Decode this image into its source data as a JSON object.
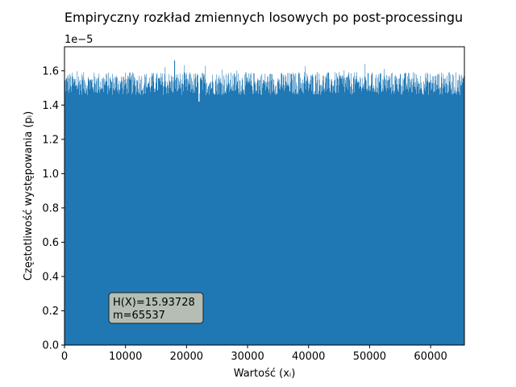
{
  "chart_data": {
    "type": "bar",
    "title": "Empiryczny rozkład zmiennych losowych po post-processingu",
    "xlabel": "Wartość (xᵢ)",
    "ylabel": "Częstotliwość występowania (pᵢ)",
    "y_offset_text": "1e−5",
    "xlim": [
      0,
      65537
    ],
    "ylim": [
      0,
      1.74
    ],
    "y_scale": "×1e-5",
    "xticks": [
      0,
      10000,
      20000,
      30000,
      40000,
      50000,
      60000
    ],
    "xtick_labels": [
      "0",
      "10000",
      "20000",
      "30000",
      "40000",
      "50000",
      "60000"
    ],
    "yticks": [
      0.0,
      0.2,
      0.4,
      0.6,
      0.8,
      1.0,
      1.2,
      1.4,
      1.6
    ],
    "ytick_labels": [
      "0.0",
      "0.2",
      "0.4",
      "0.6",
      "0.8",
      "1.0",
      "1.2",
      "1.4",
      "1.6"
    ],
    "bar_color": "#1f77b4",
    "distribution": {
      "bin_count": 65537,
      "mean_frequency": 1.526,
      "typical_band": [
        1.45,
        1.6
      ],
      "min_observed": 1.35,
      "max_observed": 1.66,
      "notable_dip_at": 22000,
      "notable_peak_at": 18000
    },
    "annotation": {
      "line1": "H(X)=15.93728",
      "line2": "m=65537"
    },
    "grid": false,
    "legend": "none"
  }
}
